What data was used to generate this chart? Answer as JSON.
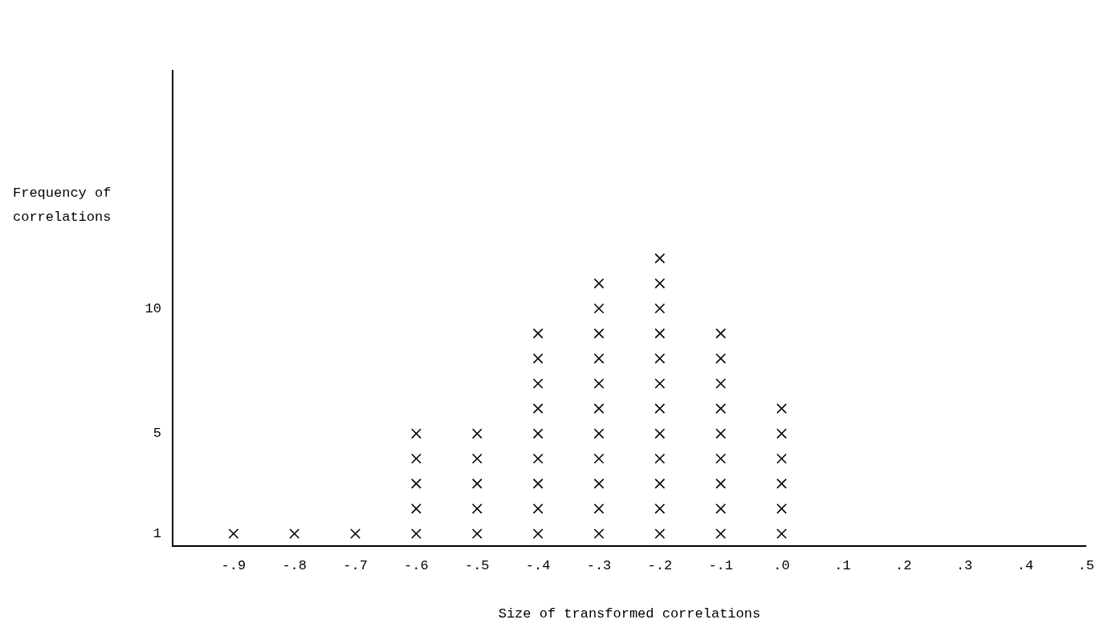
{
  "chart_data": {
    "type": "scatter",
    "xlabel": "Size of transformed correlations",
    "ylabel": "Frequency of correlations",
    "x": [
      -0.9,
      -0.8,
      -0.7,
      -0.6,
      -0.6,
      -0.6,
      -0.6,
      -0.6,
      -0.5,
      -0.5,
      -0.5,
      -0.5,
      -0.5,
      -0.4,
      -0.4,
      -0.4,
      -0.4,
      -0.4,
      -0.4,
      -0.4,
      -0.4,
      -0.4,
      -0.3,
      -0.3,
      -0.3,
      -0.3,
      -0.3,
      -0.3,
      -0.3,
      -0.3,
      -0.3,
      -0.3,
      -0.3,
      -0.2,
      -0.2,
      -0.2,
      -0.2,
      -0.2,
      -0.2,
      -0.2,
      -0.2,
      -0.2,
      -0.2,
      -0.2,
      -0.2,
      -0.1,
      -0.1,
      -0.1,
      -0.1,
      -0.1,
      -0.1,
      -0.1,
      -0.1,
      -0.1,
      0.0,
      0.0,
      0.0,
      0.0,
      0.0,
      0.0
    ],
    "values": [
      1,
      1,
      1,
      1,
      2,
      3,
      4,
      5,
      1,
      2,
      3,
      4,
      5,
      1,
      2,
      3,
      4,
      5,
      6,
      7,
      8,
      9,
      1,
      2,
      3,
      4,
      5,
      6,
      7,
      8,
      9,
      10,
      11,
      1,
      2,
      3,
      4,
      5,
      6,
      7,
      8,
      9,
      10,
      11,
      12,
      1,
      2,
      3,
      4,
      5,
      6,
      7,
      8,
      9,
      1,
      2,
      3,
      4,
      5,
      6
    ],
    "color": "#000000",
    "marker": "cross",
    "xlim": [
      -1.0,
      0.5
    ],
    "xticks": [
      {
        "value": -0.9,
        "label": "-.9"
      },
      {
        "value": -0.8,
        "label": "-.8"
      },
      {
        "value": -0.7,
        "label": "-.7"
      },
      {
        "value": -0.6,
        "label": "-.6"
      },
      {
        "value": -0.5,
        "label": "-.5"
      },
      {
        "value": -0.4,
        "label": "-.4"
      },
      {
        "value": -0.3,
        "label": "-.3"
      },
      {
        "value": -0.2,
        "label": "-.2"
      },
      {
        "value": -0.1,
        "label": "-.1"
      },
      {
        "value": 0.0,
        "label": ".0"
      },
      {
        "value": 0.1,
        "label": ".1"
      },
      {
        "value": 0.2,
        "label": ".2"
      },
      {
        "value": 0.3,
        "label": ".3"
      },
      {
        "value": 0.4,
        "label": ".4"
      },
      {
        "value": 0.5,
        "label": ".5"
      }
    ],
    "ylim": [
      0.5,
      19.5
    ],
    "yticks": [
      1,
      5,
      10
    ]
  }
}
